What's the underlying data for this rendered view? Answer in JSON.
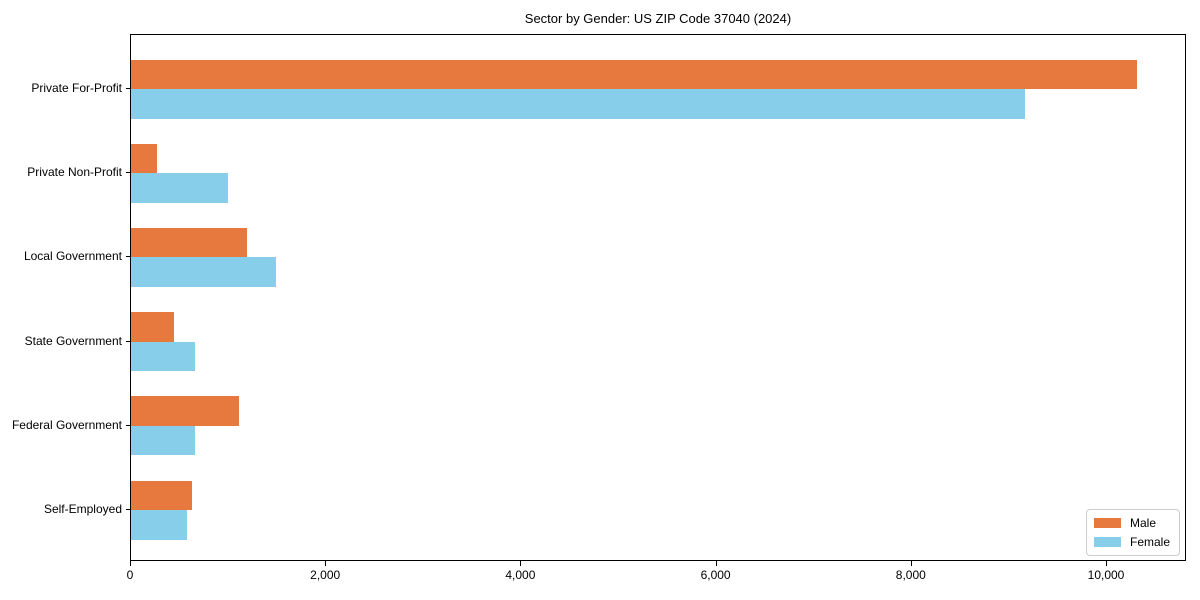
{
  "chart_data": {
    "type": "bar",
    "orientation": "horizontal",
    "title": "Sector by Gender: US ZIP Code 37040 (2024)",
    "categories": [
      "Private For-Profit",
      "Private Non-Profit",
      "Local Government",
      "State Government",
      "Federal Government",
      "Self-Employed"
    ],
    "series": [
      {
        "name": "Male",
        "color": "#e8793e",
        "values": [
          10310,
          265,
          1190,
          435,
          1110,
          620
        ]
      },
      {
        "name": "Female",
        "color": "#87ceeb",
        "values": [
          9160,
          990,
          1490,
          660,
          660,
          575
        ]
      }
    ],
    "xlabel": "",
    "ylabel": "",
    "xlim": [
      0,
      10820
    ],
    "x_ticks": [
      {
        "value": 0,
        "label": "0"
      },
      {
        "value": 2000,
        "label": "2,000"
      },
      {
        "value": 4000,
        "label": "4,000"
      },
      {
        "value": 6000,
        "label": "6,000"
      },
      {
        "value": 8000,
        "label": "8,000"
      },
      {
        "value": 10000,
        "label": "10,000"
      }
    ],
    "legend_position": "lower-right",
    "grid": false,
    "frame": true
  }
}
